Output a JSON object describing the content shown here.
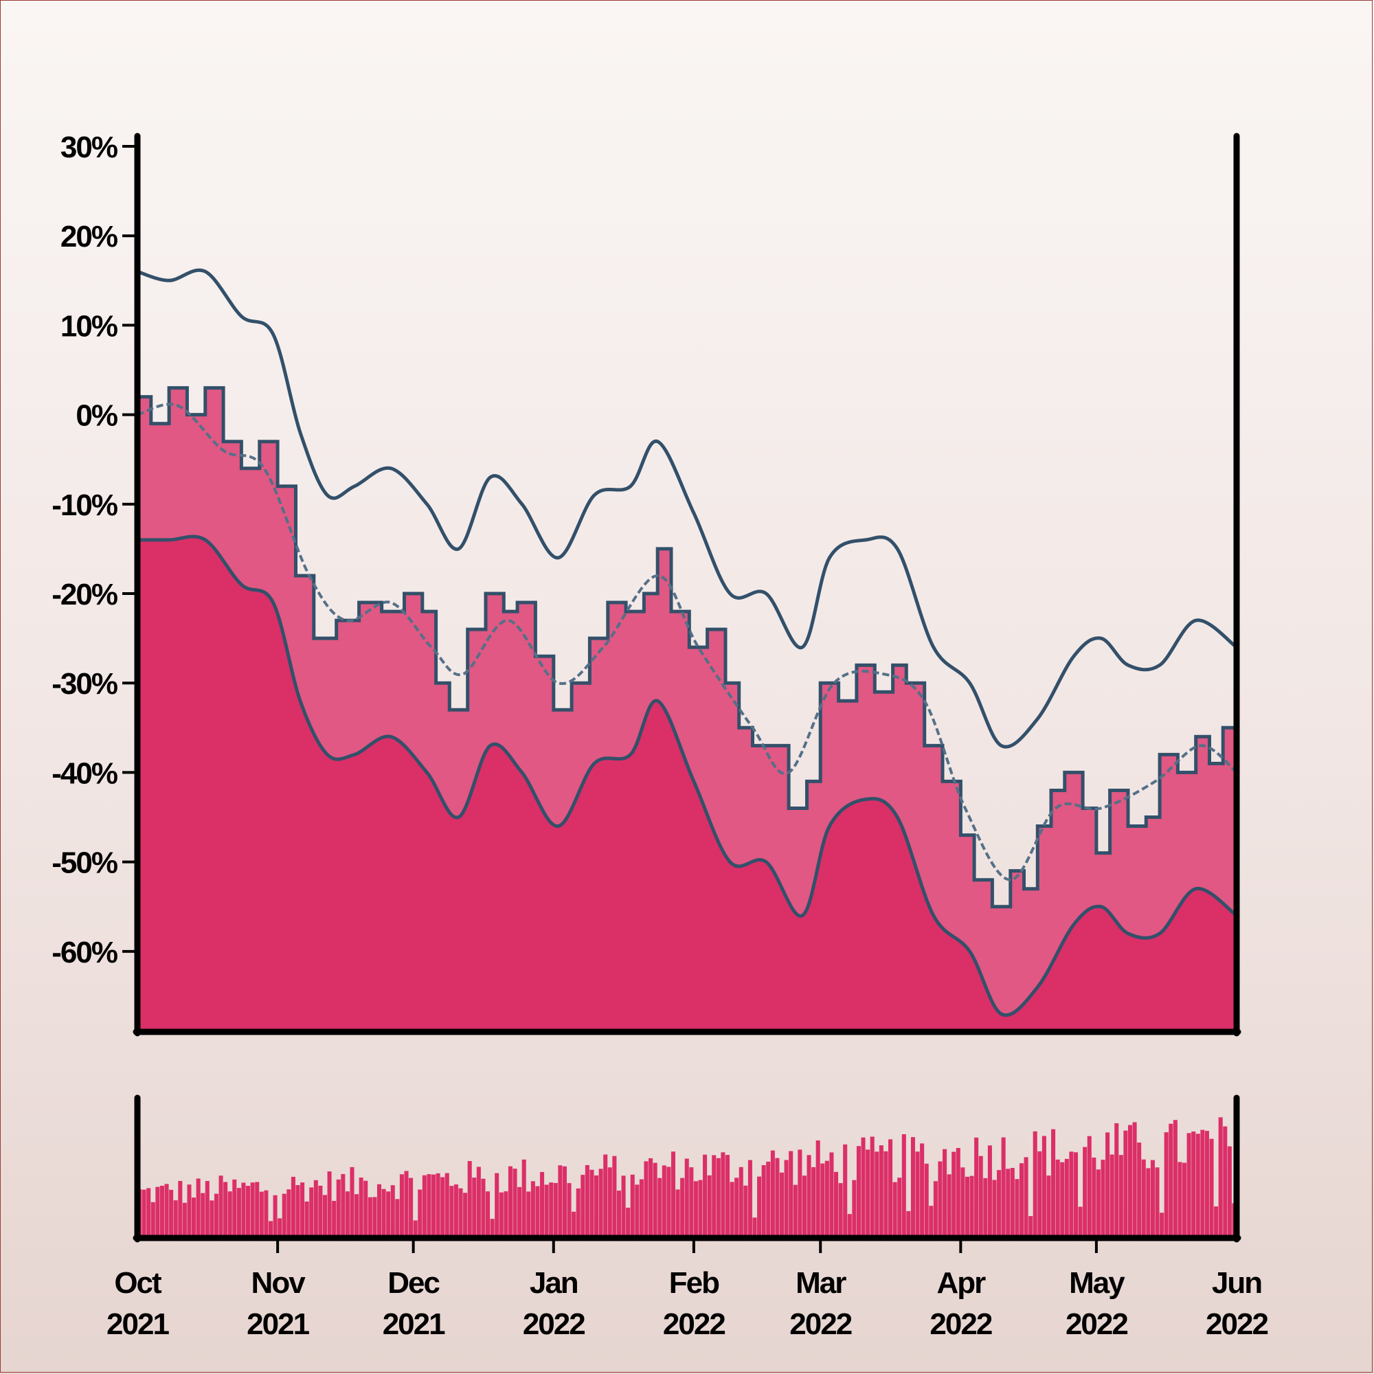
{
  "colors": {
    "background_top": "#faf6f4",
    "background_bottom": "#e6d5d0",
    "lower_band_fill": "#db2f68",
    "mid_fill": "#e05883",
    "band_line": "#33506a",
    "moving_average": "#547088",
    "axis": "#000000",
    "volume": "#db2f68"
  },
  "chart_data": {
    "type": "area",
    "x_axis": {
      "kind": "date",
      "start": "2021-10-01",
      "end": "2022-06-01",
      "ticks": [
        {
          "date": "2021-10-01",
          "month": "Oct",
          "year": "2021"
        },
        {
          "date": "2021-11-01",
          "month": "Nov",
          "year": "2021"
        },
        {
          "date": "2021-12-01",
          "month": "Dec",
          "year": "2021"
        },
        {
          "date": "2022-01-01",
          "month": "Jan",
          "year": "2022"
        },
        {
          "date": "2022-02-01",
          "month": "Feb",
          "year": "2022"
        },
        {
          "date": "2022-03-01",
          "month": "Mar",
          "year": "2022"
        },
        {
          "date": "2022-04-01",
          "month": "Apr",
          "year": "2022"
        },
        {
          "date": "2022-05-01",
          "month": "May",
          "year": "2022"
        },
        {
          "date": "2022-06-01",
          "month": "Jun",
          "year": "2022"
        }
      ]
    },
    "y_axis": {
      "unit": "%",
      "ylim": [
        -69,
        31
      ],
      "ticks": [
        {
          "value": 30,
          "label": "30%"
        },
        {
          "value": 20,
          "label": "20%"
        },
        {
          "value": 10,
          "label": "10%"
        },
        {
          "value": 0,
          "label": "0%"
        },
        {
          "value": -10,
          "label": "-10%"
        },
        {
          "value": -20,
          "label": "-20%"
        },
        {
          "value": -30,
          "label": "-30%"
        },
        {
          "value": -40,
          "label": "-40%"
        },
        {
          "value": -50,
          "label": "-50%"
        },
        {
          "value": -60,
          "label": "-60%"
        }
      ]
    },
    "grid": false,
    "legend": "none",
    "series": [
      {
        "role": "price",
        "style": "filled area, stepped",
        "points": [
          [
            "2021-10-01",
            2
          ],
          [
            "2021-10-04",
            -1
          ],
          [
            "2021-10-08",
            3
          ],
          [
            "2021-10-12",
            0
          ],
          [
            "2021-10-16",
            3
          ],
          [
            "2021-10-20",
            -3
          ],
          [
            "2021-10-24",
            -6
          ],
          [
            "2021-10-28",
            -3
          ],
          [
            "2021-11-01",
            -8
          ],
          [
            "2021-11-05",
            -18
          ],
          [
            "2021-11-09",
            -25
          ],
          [
            "2021-11-14",
            -23
          ],
          [
            "2021-11-19",
            -21
          ],
          [
            "2021-11-24",
            -22
          ],
          [
            "2021-11-29",
            -20
          ],
          [
            "2021-12-03",
            -22
          ],
          [
            "2021-12-06",
            -30
          ],
          [
            "2021-12-09",
            -33
          ],
          [
            "2021-12-13",
            -24
          ],
          [
            "2021-12-17",
            -20
          ],
          [
            "2021-12-21",
            -22
          ],
          [
            "2021-12-24",
            -21
          ],
          [
            "2021-12-28",
            -27
          ],
          [
            "2022-01-01",
            -33
          ],
          [
            "2022-01-05",
            -30
          ],
          [
            "2022-01-09",
            -25
          ],
          [
            "2022-01-13",
            -21
          ],
          [
            "2022-01-17",
            -22
          ],
          [
            "2022-01-21",
            -20
          ],
          [
            "2022-01-24",
            -15
          ],
          [
            "2022-01-27",
            -22
          ],
          [
            "2022-01-31",
            -26
          ],
          [
            "2022-02-04",
            -24
          ],
          [
            "2022-02-08",
            -30
          ],
          [
            "2022-02-11",
            -35
          ],
          [
            "2022-02-14",
            -37
          ],
          [
            "2022-02-18",
            -37
          ],
          [
            "2022-02-22",
            -44
          ],
          [
            "2022-02-26",
            -41
          ],
          [
            "2022-03-01",
            -30
          ],
          [
            "2022-03-05",
            -32
          ],
          [
            "2022-03-09",
            -28
          ],
          [
            "2022-03-13",
            -31
          ],
          [
            "2022-03-17",
            -28
          ],
          [
            "2022-03-20",
            -30
          ],
          [
            "2022-03-24",
            -37
          ],
          [
            "2022-03-28",
            -41
          ],
          [
            "2022-04-01",
            -47
          ],
          [
            "2022-04-04",
            -52
          ],
          [
            "2022-04-08",
            -55
          ],
          [
            "2022-04-12",
            -51
          ],
          [
            "2022-04-15",
            -53
          ],
          [
            "2022-04-18",
            -46
          ],
          [
            "2022-04-21",
            -42
          ],
          [
            "2022-04-24",
            -40
          ],
          [
            "2022-04-28",
            -44
          ],
          [
            "2022-05-01",
            -49
          ],
          [
            "2022-05-04",
            -42
          ],
          [
            "2022-05-08",
            -46
          ],
          [
            "2022-05-12",
            -45
          ],
          [
            "2022-05-15",
            -38
          ],
          [
            "2022-05-19",
            -40
          ],
          [
            "2022-05-23",
            -36
          ],
          [
            "2022-05-26",
            -39
          ],
          [
            "2022-05-29",
            -35
          ],
          [
            "2022-06-01",
            -38
          ]
        ]
      },
      {
        "role": "moving_average",
        "style": "dashed line",
        "points": [
          [
            "2021-10-01",
            0
          ],
          [
            "2021-10-10",
            1
          ],
          [
            "2021-10-20",
            -4
          ],
          [
            "2021-10-29",
            -6
          ],
          [
            "2021-11-08",
            -18
          ],
          [
            "2021-11-16",
            -23
          ],
          [
            "2021-11-26",
            -21
          ],
          [
            "2021-12-05",
            -26
          ],
          [
            "2021-12-12",
            -29
          ],
          [
            "2021-12-22",
            -23
          ],
          [
            "2022-01-02",
            -30
          ],
          [
            "2022-01-12",
            -26
          ],
          [
            "2022-01-24",
            -18
          ],
          [
            "2022-02-02",
            -26
          ],
          [
            "2022-02-14",
            -35
          ],
          [
            "2022-02-22",
            -40
          ],
          [
            "2022-03-04",
            -30
          ],
          [
            "2022-03-15",
            -29
          ],
          [
            "2022-03-24",
            -32
          ],
          [
            "2022-04-02",
            -44
          ],
          [
            "2022-04-12",
            -52
          ],
          [
            "2022-04-22",
            -44
          ],
          [
            "2022-05-02",
            -44
          ],
          [
            "2022-05-14",
            -41
          ],
          [
            "2022-05-24",
            -37
          ],
          [
            "2022-06-01",
            -40
          ]
        ]
      },
      {
        "role": "upper_band",
        "style": "line",
        "points": [
          [
            "2021-10-01",
            16
          ],
          [
            "2021-10-08",
            15
          ],
          [
            "2021-10-16",
            16
          ],
          [
            "2021-10-24",
            11
          ],
          [
            "2021-10-31",
            9
          ],
          [
            "2021-11-06",
            -2
          ],
          [
            "2021-11-12",
            -9
          ],
          [
            "2021-11-18",
            -8
          ],
          [
            "2021-11-26",
            -6
          ],
          [
            "2021-12-04",
            -10
          ],
          [
            "2021-12-11",
            -15
          ],
          [
            "2021-12-18",
            -7
          ],
          [
            "2021-12-25",
            -10
          ],
          [
            "2022-01-02",
            -16
          ],
          [
            "2022-01-10",
            -9
          ],
          [
            "2022-01-18",
            -8
          ],
          [
            "2022-01-24",
            -3
          ],
          [
            "2022-02-01",
            -11
          ],
          [
            "2022-02-09",
            -20
          ],
          [
            "2022-02-17",
            -20
          ],
          [
            "2022-02-25",
            -26
          ],
          [
            "2022-03-03",
            -16
          ],
          [
            "2022-03-11",
            -14
          ],
          [
            "2022-03-18",
            -15
          ],
          [
            "2022-03-26",
            -26
          ],
          [
            "2022-04-03",
            -30
          ],
          [
            "2022-04-10",
            -37
          ],
          [
            "2022-04-18",
            -34
          ],
          [
            "2022-04-26",
            -27
          ],
          [
            "2022-05-02",
            -25
          ],
          [
            "2022-05-08",
            -28
          ],
          [
            "2022-05-15",
            -28
          ],
          [
            "2022-05-23",
            -23
          ],
          [
            "2022-06-01",
            -26
          ]
        ]
      },
      {
        "role": "lower_band",
        "style": "filled area",
        "points": [
          [
            "2021-10-01",
            -14
          ],
          [
            "2021-10-08",
            -14
          ],
          [
            "2021-10-16",
            -14
          ],
          [
            "2021-10-24",
            -19
          ],
          [
            "2021-10-31",
            -21
          ],
          [
            "2021-11-06",
            -32
          ],
          [
            "2021-11-12",
            -38
          ],
          [
            "2021-11-18",
            -38
          ],
          [
            "2021-11-26",
            -36
          ],
          [
            "2021-12-04",
            -40
          ],
          [
            "2021-12-11",
            -45
          ],
          [
            "2021-12-18",
            -37
          ],
          [
            "2021-12-25",
            -40
          ],
          [
            "2022-01-02",
            -46
          ],
          [
            "2022-01-10",
            -39
          ],
          [
            "2022-01-18",
            -38
          ],
          [
            "2022-01-24",
            -32
          ],
          [
            "2022-02-01",
            -41
          ],
          [
            "2022-02-09",
            -50
          ],
          [
            "2022-02-17",
            -50
          ],
          [
            "2022-02-25",
            -56
          ],
          [
            "2022-03-03",
            -46
          ],
          [
            "2022-03-11",
            -43
          ],
          [
            "2022-03-18",
            -45
          ],
          [
            "2022-03-26",
            -56
          ],
          [
            "2022-04-03",
            -60
          ],
          [
            "2022-04-10",
            -67
          ],
          [
            "2022-04-18",
            -64
          ],
          [
            "2022-04-26",
            -57
          ],
          [
            "2022-05-02",
            -55
          ],
          [
            "2022-05-08",
            -58
          ],
          [
            "2022-05-15",
            -58
          ],
          [
            "2022-05-23",
            -53
          ],
          [
            "2022-06-01",
            -56
          ]
        ]
      }
    ],
    "volume_panel": {
      "type": "bar",
      "axis_labels": "none",
      "trend": "gradually increasing",
      "relative_height_start": 0.4,
      "relative_height_end": 0.85
    }
  }
}
